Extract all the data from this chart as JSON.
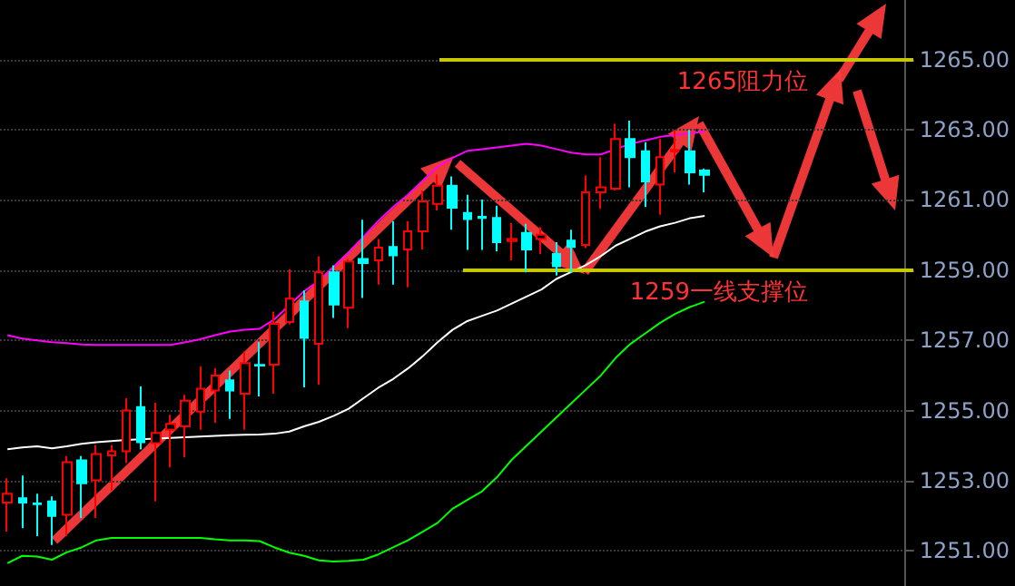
{
  "chart_data": {
    "type": "candlestick",
    "categories": [
      null,
      null,
      null,
      null,
      null,
      null,
      null,
      null,
      null,
      null,
      null,
      null,
      null,
      null,
      null,
      null,
      null,
      null,
      null,
      null,
      null,
      null,
      null,
      null,
      null,
      null,
      null,
      null,
      null,
      null,
      null,
      null,
      null,
      null,
      null,
      null,
      null,
      null,
      null,
      null,
      null,
      null,
      null,
      null,
      null,
      null,
      null,
      null,
      null,
      null,
      null,
      null,
      null,
      null,
      null,
      null,
      null,
      null,
      null,
      null,
      null
    ],
    "ohlc": [
      [
        1252.38,
        1253.07,
        1251.55,
        1252.63
      ],
      [
        1252.5,
        1253.15,
        1251.65,
        1252.38
      ],
      [
        1252.35,
        1252.63,
        1251.42,
        1252.33
      ],
      [
        1252.41,
        1252.55,
        1251.17,
        1252.0
      ],
      [
        1252.03,
        1253.7,
        1251.42,
        1253.53
      ],
      [
        1253.58,
        1253.7,
        1251.94,
        1252.93
      ],
      [
        1253.01,
        1254.02,
        1251.94,
        1253.76
      ],
      [
        1253.72,
        1254.02,
        1252.72,
        1253.84
      ],
      [
        1253.84,
        1255.35,
        1253.5,
        1255.0
      ],
      [
        1255.1,
        1255.69,
        1253.89,
        1254.1
      ],
      [
        1254.07,
        1255.22,
        1252.41,
        1254.36
      ],
      [
        1254.45,
        1254.88,
        1253.38,
        1254.62
      ],
      [
        1254.55,
        1255.45,
        1253.67,
        1255.28
      ],
      [
        1254.97,
        1256.26,
        1254.45,
        1255.62
      ],
      [
        1255.57,
        1256.21,
        1254.65,
        1256.0
      ],
      [
        1255.86,
        1256.14,
        1254.76,
        1255.57
      ],
      [
        1255.48,
        1256.69,
        1254.45,
        1256.35
      ],
      [
        1256.3,
        1256.95,
        1255.4,
        1256.28
      ],
      [
        1256.31,
        1257.82,
        1255.48,
        1257.47
      ],
      [
        1257.52,
        1259.02,
        1257.45,
        1258.19
      ],
      [
        1258.11,
        1258.42,
        1255.66,
        1257.07
      ],
      [
        1256.9,
        1259.4,
        1255.74,
        1258.94
      ],
      [
        1258.94,
        1259.14,
        1257.64,
        1258.02
      ],
      [
        1257.93,
        1259.32,
        1257.35,
        1259.25
      ],
      [
        1259.32,
        1260.44,
        1258.21,
        1259.2
      ],
      [
        1259.28,
        1259.89,
        1258.59,
        1259.64
      ],
      [
        1259.66,
        1260.4,
        1258.59,
        1259.42
      ],
      [
        1259.59,
        1260.4,
        1258.51,
        1260.11
      ],
      [
        1260.11,
        1261.27,
        1259.59,
        1260.96
      ],
      [
        1260.89,
        1261.73,
        1260.7,
        1261.41
      ],
      [
        1261.41,
        1261.67,
        1260.15,
        1260.78
      ],
      [
        1260.63,
        1261.15,
        1259.58,
        1260.46
      ],
      [
        1260.52,
        1261.01,
        1259.58,
        1260.49
      ],
      [
        1260.49,
        1260.84,
        1259.54,
        1259.8
      ],
      [
        1259.83,
        1260.35,
        1259.28,
        1259.89
      ],
      [
        1260.06,
        1260.32,
        1258.94,
        1259.59
      ],
      [
        1259.89,
        1260.23,
        1259.46,
        1260.01
      ],
      [
        1259.46,
        1259.8,
        1258.85,
        1259.11
      ],
      [
        1259.84,
        1260.15,
        1258.93,
        1259.66
      ],
      [
        1259.72,
        1261.7,
        1259.63,
        1261.22
      ],
      [
        1261.22,
        1262.22,
        1260.75,
        1261.36
      ],
      [
        1261.32,
        1263.17,
        1261.27,
        1262.74
      ],
      [
        1262.74,
        1263.26,
        1261.36,
        1262.22
      ],
      [
        1262.39,
        1262.65,
        1260.8,
        1261.53
      ],
      [
        1261.44,
        1262.74,
        1260.58,
        1262.22
      ],
      [
        1262.38,
        1263.0,
        1261.79,
        1262.43
      ],
      [
        1262.39,
        1263.0,
        1261.44,
        1261.79
      ],
      [
        1261.84,
        1261.9,
        1261.22,
        1261.72
      ],
      null,
      null,
      null,
      null,
      null,
      null,
      null,
      null,
      null,
      null,
      null,
      null,
      null
    ],
    "colors": [
      "#ff0000",
      "#00ffff",
      "#00ffff",
      "#00ffff",
      "#ff0000",
      "#00ffff",
      "#ff0000",
      "#ff0000",
      "#ff0000",
      "#00ffff",
      "#ff0000",
      "#ff0000",
      "#ff0000",
      "#ff0000",
      "#ff0000",
      "#00ffff",
      "#ff0000",
      "#00ffff",
      "#ff0000",
      "#ff0000",
      "#00ffff",
      "#ff0000",
      "#00ffff",
      "#ff0000",
      "#00ffff",
      "#ff0000",
      "#00ffff",
      "#ff0000",
      "#ff0000",
      "#ff0000",
      "#00ffff",
      "#00ffff",
      "#00ffff",
      "#00ffff",
      "#ff0000",
      "#00ffff",
      "#ff0000",
      "#00ffff",
      "#00ffff",
      "#ff0000",
      "#ff0000",
      "#ff0000",
      "#00ffff",
      "#00ffff",
      "#ff0000",
      "#ff0000",
      "#00ffff",
      "#00ffff",
      null,
      null,
      null,
      null,
      null,
      null,
      null,
      null,
      null,
      null,
      null,
      null,
      null
    ],
    "series": [
      {
        "type": "line",
        "color": "#ff00ff",
        "values": [
          1257.15,
          1257.05,
          1257.0,
          1256.95,
          1256.92,
          1256.88,
          1256.87,
          1256.87,
          1256.87,
          1256.87,
          1256.87,
          1256.87,
          1256.95,
          1257.03,
          1257.15,
          1257.25,
          1257.3,
          1257.33,
          1257.6,
          1258.0,
          1258.4,
          1258.7,
          1259.1,
          1259.5,
          1259.95,
          1260.4,
          1260.8,
          1261.15,
          1261.55,
          1261.95,
          1262.2,
          1262.4,
          1262.45,
          1262.5,
          1262.55,
          1262.6,
          1262.55,
          1262.45,
          1262.35,
          1262.3,
          1262.3,
          1262.45,
          1262.6,
          1262.7,
          1262.8,
          1262.85,
          1262.9,
          1262.95,
          null,
          null,
          null,
          null,
          null,
          null,
          null,
          null,
          null,
          null,
          null,
          null,
          null
        ]
      },
      {
        "type": "line",
        "color": "#ffffff",
        "values": [
          1253.9,
          1253.95,
          1253.98,
          1253.92,
          1253.98,
          1254.05,
          1254.1,
          1254.13,
          1254.16,
          1254.18,
          1254.2,
          1254.22,
          1254.24,
          1254.26,
          1254.28,
          1254.3,
          1254.31,
          1254.32,
          1254.34,
          1254.4,
          1254.55,
          1254.68,
          1254.85,
          1255.05,
          1255.35,
          1255.65,
          1255.9,
          1256.2,
          1256.55,
          1256.95,
          1257.3,
          1257.55,
          1257.7,
          1257.85,
          1258.05,
          1258.25,
          1258.45,
          1258.75,
          1258.95,
          1259.15,
          1259.4,
          1259.7,
          1259.9,
          1260.1,
          1260.25,
          1260.35,
          1260.48,
          1260.55,
          null,
          null,
          null,
          null,
          null,
          null,
          null,
          null,
          null,
          null,
          null,
          null,
          null
        ]
      },
      {
        "type": "line",
        "color": "#00ff00",
        "values": [
          1250.65,
          1250.86,
          1250.84,
          1250.75,
          1250.96,
          1251.1,
          1251.3,
          1251.37,
          1251.37,
          1251.37,
          1251.37,
          1251.37,
          1251.37,
          1251.37,
          1251.33,
          1251.3,
          1251.3,
          1251.28,
          1251.1,
          1250.95,
          1250.86,
          1250.73,
          1250.7,
          1250.72,
          1250.75,
          1250.9,
          1251.1,
          1251.3,
          1251.55,
          1251.8,
          1252.2,
          1252.45,
          1252.7,
          1253.1,
          1253.6,
          1254.0,
          1254.4,
          1254.8,
          1255.2,
          1255.6,
          1256.0,
          1256.5,
          1256.9,
          1257.2,
          1257.5,
          1257.75,
          1257.95,
          1258.1,
          null,
          null,
          null,
          null,
          null,
          null,
          null,
          null,
          null,
          null,
          null,
          null,
          null
        ]
      }
    ],
    "ylim": [
      1250,
      1266.7
    ],
    "yticks": [
      {
        "value": 1251,
        "label": "1251.00"
      },
      {
        "value": 1253,
        "label": "1253.00"
      },
      {
        "value": 1255,
        "label": "1255.00"
      },
      {
        "value": 1257,
        "label": "1257.00"
      },
      {
        "value": 1259,
        "label": "1259.00"
      },
      {
        "value": 1261,
        "label": "1261.00"
      },
      {
        "value": 1263,
        "label": "1263.00"
      },
      {
        "value": 1265,
        "label": "1265.00"
      }
    ],
    "grid": "y",
    "tick_labels": "y",
    "ref_lines": [
      {
        "axis": "y",
        "value": 1265,
        "label": "1265阻力位",
        "color": "#c8c800"
      },
      {
        "axis": "y",
        "value": 1259,
        "label": "1259一线支撑位",
        "color": "#c8c800"
      }
    ]
  }
}
